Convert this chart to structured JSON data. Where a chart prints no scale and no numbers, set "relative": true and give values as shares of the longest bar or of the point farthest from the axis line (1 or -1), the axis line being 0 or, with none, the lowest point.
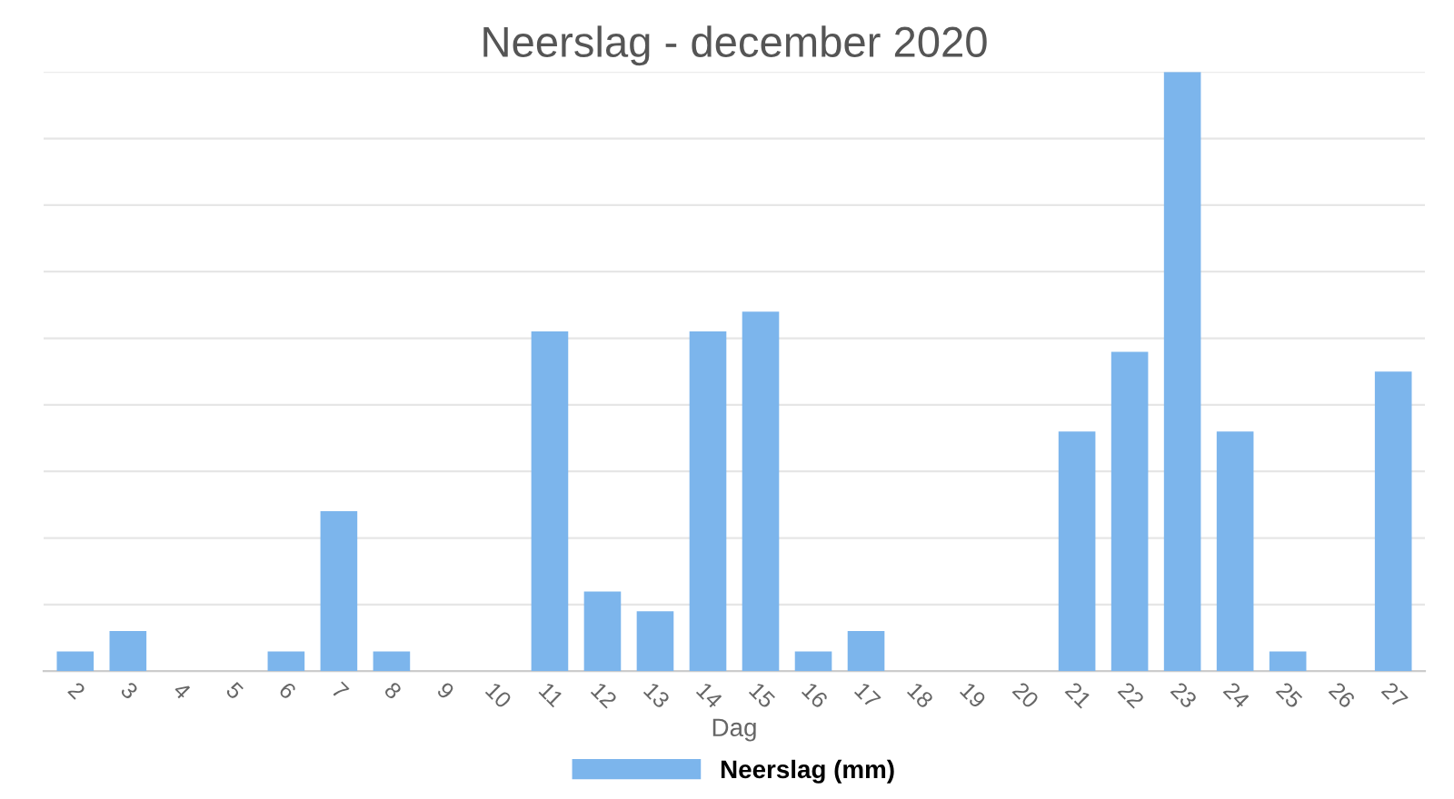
{
  "chart_data": {
    "type": "bar",
    "title": "Neerslag - december 2020",
    "xlabel": "Dag",
    "categories": [
      "2",
      "3",
      "4",
      "5",
      "6",
      "7",
      "8",
      "9",
      "10",
      "11",
      "12",
      "13",
      "14",
      "15",
      "16",
      "17",
      "18",
      "19",
      "20",
      "21",
      "22",
      "23",
      "24",
      "25",
      "26",
      "27"
    ],
    "relative": true,
    "series": [
      {
        "name": "Neerslag (mm)",
        "color": "#7cb5ec",
        "values": [
          0.033,
          0.067,
          0,
          0,
          0.033,
          0.267,
          0.033,
          0,
          0,
          0.567,
          0.133,
          0.1,
          0.567,
          0.6,
          0.033,
          0.067,
          0,
          0,
          0,
          0.4,
          0.533,
          1,
          0.4,
          0.033,
          0,
          0.5
        ]
      }
    ],
    "grid": "y",
    "legend": "bottom"
  }
}
